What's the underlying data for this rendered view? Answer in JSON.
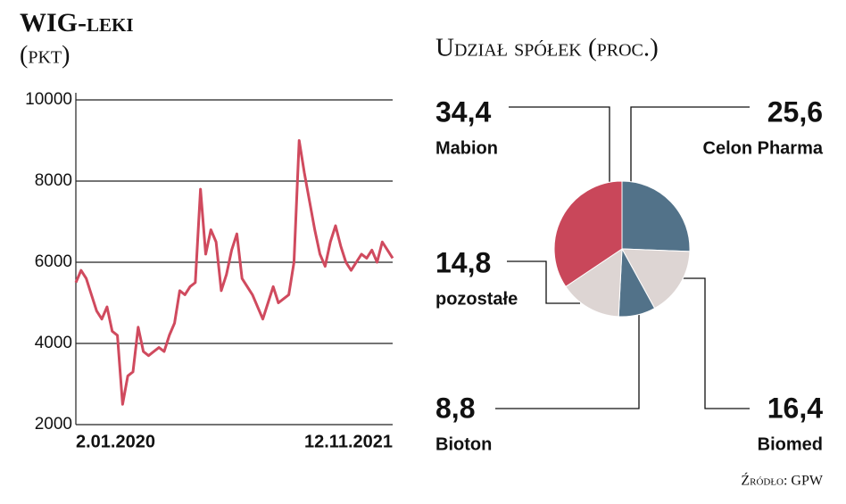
{
  "chart_data": [
    {
      "type": "line",
      "title": "WIG-leki",
      "y_label": "(pkt)",
      "categories": [
        "2.01.2020",
        null,
        null,
        null,
        null,
        null,
        null,
        null,
        null,
        null,
        null,
        null,
        null,
        null,
        null,
        null,
        null,
        null,
        null,
        null,
        null,
        null,
        null,
        null,
        null,
        null,
        null,
        null,
        null,
        null,
        null,
        null,
        null,
        null,
        null,
        null,
        null,
        null,
        null,
        null,
        null,
        null,
        null,
        null,
        null,
        null,
        null,
        null,
        null,
        null,
        null,
        null,
        null,
        null,
        null,
        null,
        null,
        null,
        null,
        null,
        null,
        "12.11.2021"
      ],
      "values": [
        5500,
        5800,
        5600,
        5200,
        4800,
        4600,
        4900,
        4300,
        4200,
        2500,
        3200,
        3300,
        4400,
        3800,
        3700,
        3800,
        3900,
        3800,
        4200,
        4500,
        5300,
        5200,
        5400,
        5500,
        7800,
        6200,
        6800,
        6500,
        5300,
        5700,
        6300,
        6700,
        5600,
        5400,
        5200,
        4900,
        4600,
        5000,
        5400,
        5000,
        5100,
        5200,
        6000,
        9000,
        8200,
        7500,
        6800,
        6200,
        5900,
        6500,
        6900,
        6400,
        6000,
        5800,
        6000,
        6200,
        6100,
        6300,
        6000,
        6500,
        6300,
        6100
      ],
      "color": "#d04a5e",
      "ylim": [
        2000,
        10000
      ],
      "yticks": [
        2000,
        4000,
        6000,
        8000,
        10000
      ],
      "grid": true
    },
    {
      "type": "pie",
      "title": "Udział spółek (proc.)",
      "categories": [
        "Celon Pharma",
        "Biomed",
        "Bioton",
        "pozostałe",
        "Mabion"
      ],
      "values": [
        25.6,
        16.4,
        8.8,
        14.8,
        34.4
      ],
      "value_labels": [
        "25,6",
        "16,4",
        "8,8",
        "14,8",
        "34,4"
      ],
      "colors": [
        "#527289",
        "#ddd5d3",
        "#527289",
        "#ddd5d3",
        "#c9475a"
      ]
    }
  ],
  "source": "Źródło: GPW"
}
